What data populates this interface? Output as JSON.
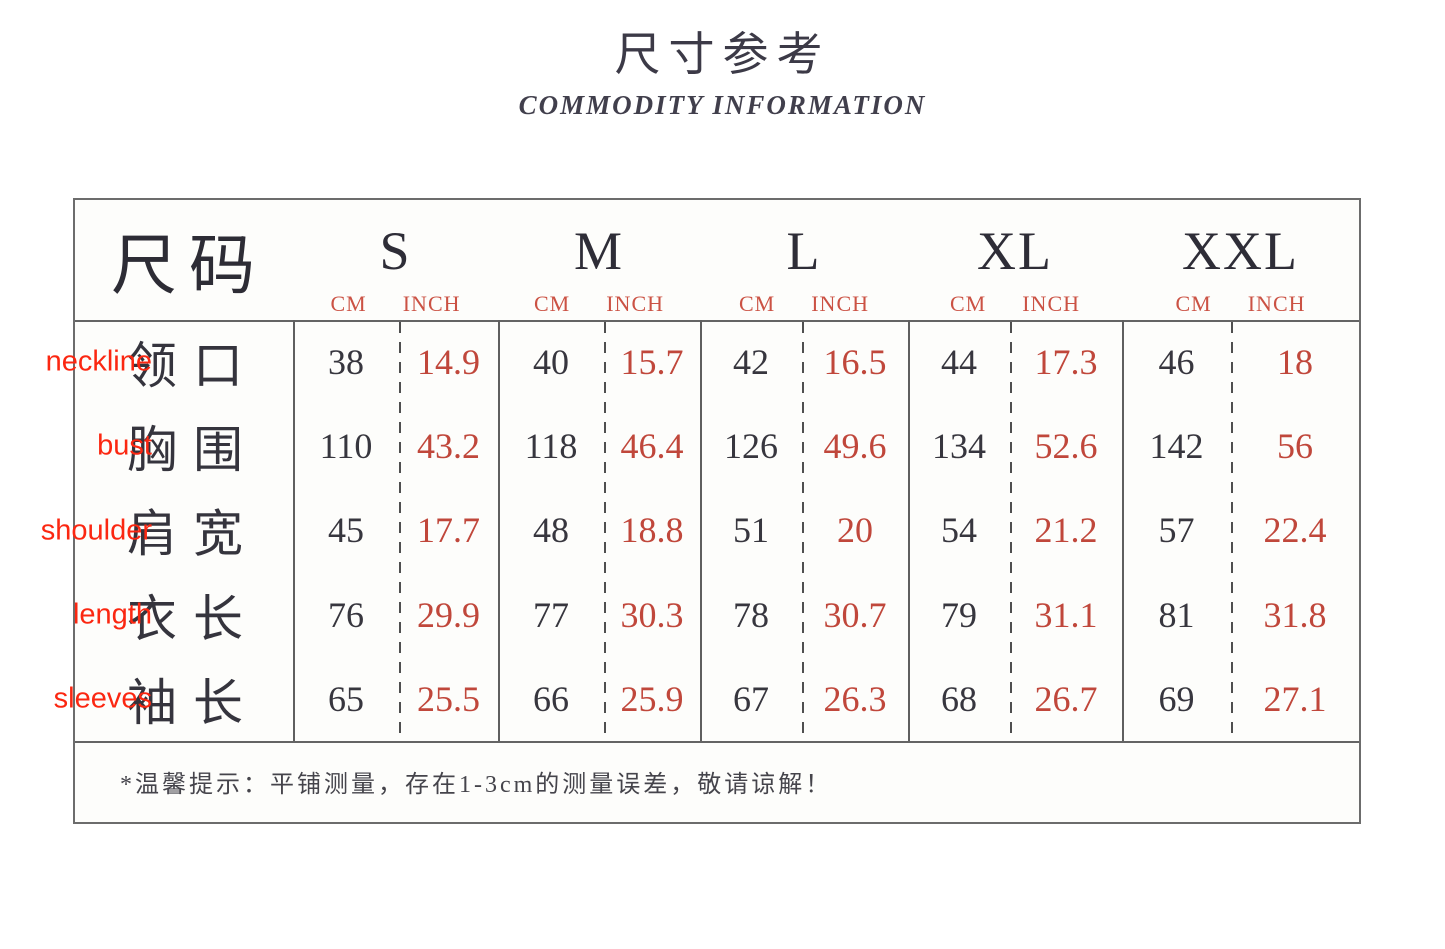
{
  "page": {
    "title": "尺寸参考",
    "subtitle": "COMMODITY INFORMATION"
  },
  "colors": {
    "ink": "#35343d",
    "inch_value_red": "#c0473b",
    "unit_label_red": "#cb5244",
    "annotation_red": "#fb2711",
    "border_gray": "#6c6c6c"
  },
  "chart_data": {
    "type": "table",
    "title": "尺寸参考",
    "subtitle": "COMMODITY INFORMATION",
    "corner_label": "尺码",
    "sizes": [
      "S",
      "M",
      "L",
      "XL",
      "XXL"
    ],
    "units": [
      "CM",
      "INCH"
    ],
    "measurements": [
      {
        "name_en": "neckline",
        "name_zh": "领口",
        "cm": [
          38,
          40,
          42,
          44,
          46
        ],
        "inch": [
          14.9,
          15.7,
          16.5,
          17.3,
          18
        ]
      },
      {
        "name_en": "bust",
        "name_zh": "胸围",
        "cm": [
          110,
          118,
          126,
          134,
          142
        ],
        "inch": [
          43.2,
          46.4,
          49.6,
          52.6,
          56
        ]
      },
      {
        "name_en": "shoulder",
        "name_zh": "肩宽",
        "cm": [
          45,
          48,
          51,
          54,
          57
        ],
        "inch": [
          17.7,
          18.8,
          20,
          21.2,
          22.4
        ]
      },
      {
        "name_en": "length",
        "name_zh": "衣长",
        "cm": [
          76,
          77,
          78,
          79,
          81
        ],
        "inch": [
          29.9,
          30.3,
          30.7,
          31.1,
          31.8
        ]
      },
      {
        "name_en": "sleeves",
        "name_zh": "袖长",
        "cm": [
          65,
          66,
          67,
          68,
          69
        ],
        "inch": [
          25.5,
          25.9,
          26.3,
          26.7,
          27.1
        ]
      }
    ],
    "note": "*温馨提示：平铺测量，存在1-3cm的测量误差，敬请谅解！"
  }
}
